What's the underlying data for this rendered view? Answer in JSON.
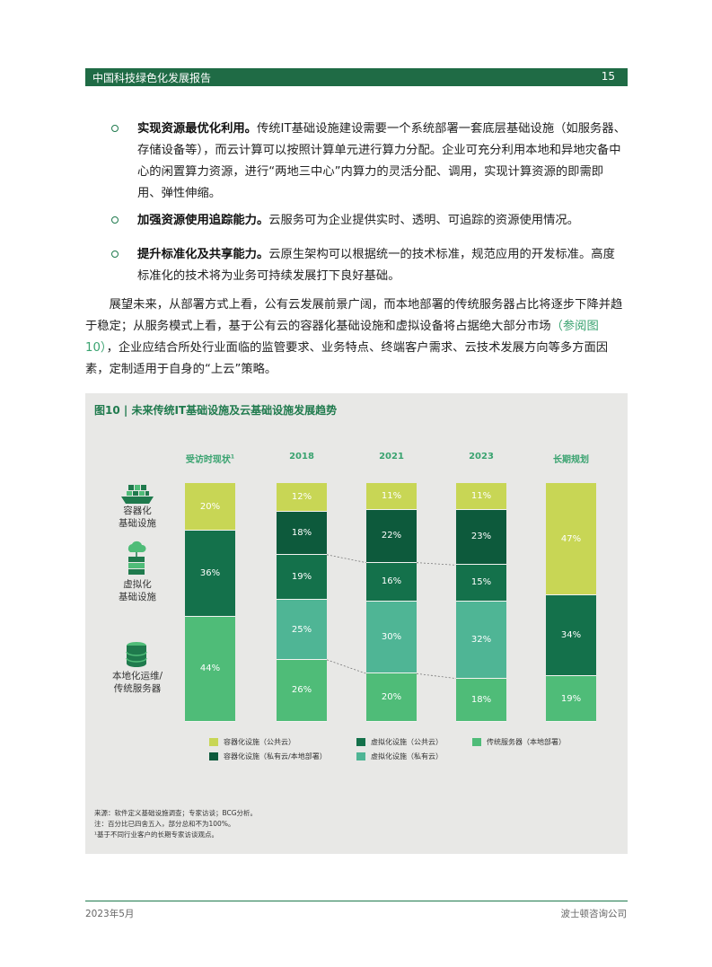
{
  "header": {
    "title": "中国科技绿色化发展报告",
    "page": "15"
  },
  "bullets": [
    {
      "bold": "实现资源最优化利用。",
      "text": "传统IT基础设施建设需要一个系统部署一套底层基础设施（如服务器、存储设备等），而云计算可以按照计算单元进行算力分配。企业可充分利用本地和异地灾备中心的闲置算力资源，进行“两地三中心”内算力的灵活分配、调用，实现计算资源的即需即用、弹性伸缩。"
    },
    {
      "bold": "加强资源使用追踪能力。",
      "text": "云服务可为企业提供实时、透明、可追踪的资源使用情况。"
    },
    {
      "bold": "提升标准化及共享能力。",
      "text": "云原生架构可以根据统一的技术标准，规范应用的开发标准。高度标准化的技术将为业务可持续发展打下良好基础。"
    }
  ],
  "paragraph": {
    "before": "展望未来，从部署方式上看，公有云发展前景广阔，而本地部署的传统服务器占比将逐步下降并趋于稳定；从服务模式上看，基于公有云的容器化基础设施和虚拟设备将占据绝大部分市场",
    "link": "（参阅图10）",
    "after": "，企业应结合所处行业面临的监管要求、业务特点、终端客户需求、云技术发展方向等多方面因素，定制适用于自身的“上云”策略。"
  },
  "figure": {
    "title": "图10 | 未来传统IT基础设施及云基础设施发展趋势",
    "row_labels": [
      {
        "icon": "container-ship-icon",
        "text": "容器化\n基础设施"
      },
      {
        "icon": "cloud-server-icon",
        "text": "虚拟化\n基础设施"
      },
      {
        "icon": "database-icon",
        "text": "本地化运维/\n传统服务器"
      }
    ],
    "notes": [
      "来源：软件定义基础设施调查；专家访谈；BCG分析。",
      "注：百分比已四舍五入，部分总和不为100%。",
      "¹基于不同行业客户的长期专家访谈观点。"
    ]
  },
  "chart_data": {
    "type": "bar",
    "stacked": true,
    "categories": [
      "受访时现状",
      "2018",
      "2021",
      "2023",
      "长期规划"
    ],
    "category_footnote": [
      "1",
      "",
      "",
      "",
      ""
    ],
    "series": [
      {
        "name": "容器化设施（公共云）",
        "color": "#c8d655",
        "values": [
          20,
          12,
          11,
          11,
          47
        ]
      },
      {
        "name": "容器化设施（私有云/本地部署）",
        "color": "#0d5a3c",
        "values": [
          null,
          18,
          22,
          23,
          null
        ]
      },
      {
        "name": "虚拟化设施（公共云）",
        "color": "#14714b",
        "values": [
          36,
          19,
          16,
          15,
          34
        ]
      },
      {
        "name": "虚拟化设施（私有云）",
        "color": "#4fb595",
        "values": [
          null,
          25,
          30,
          32,
          null
        ]
      },
      {
        "name": "传统服务器（本地部署）",
        "color": "#4fbc78",
        "values": [
          44,
          26,
          20,
          18,
          19
        ]
      }
    ],
    "ylim": [
      0,
      100
    ],
    "legend_position": "bottom"
  },
  "footer": {
    "date": "2023年5月",
    "org": "波士顿咨询公司"
  }
}
